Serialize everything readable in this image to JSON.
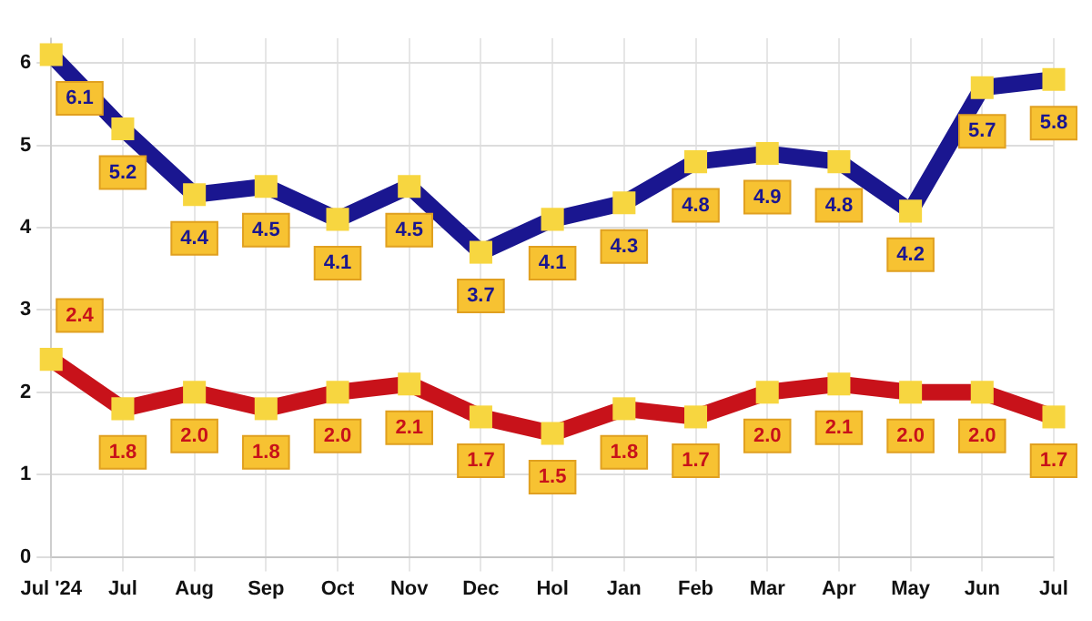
{
  "chart_data": {
    "type": "line",
    "categories": [
      "Jul '24",
      "Jul",
      "Aug",
      "Sep",
      "Oct",
      "Nov",
      "Dec",
      "Hol",
      "Jan",
      "Feb",
      "Mar",
      "Apr",
      "May",
      "Jun",
      "Jul"
    ],
    "series": [
      {
        "color": "#1a1690",
        "values": [
          6.1,
          5.2,
          4.4,
          4.5,
          4.1,
          4.5,
          3.7,
          4.1,
          4.3,
          4.8,
          4.9,
          4.8,
          4.2,
          5.7,
          5.8
        ],
        "value_labels": [
          "6.1",
          "5.2",
          "4.4",
          "4.5",
          "4.1",
          "4.5",
          "3.7",
          "4.1",
          "4.3",
          "4.8",
          "4.9",
          "4.8",
          "4.2",
          "5.7",
          "5.8"
        ]
      },
      {
        "color": "#c8121a",
        "values": [
          2.4,
          1.8,
          2.0,
          1.8,
          2.0,
          2.1,
          1.7,
          1.5,
          1.8,
          1.7,
          2.0,
          2.1,
          2.0,
          2.0,
          1.7
        ],
        "value_labels": [
          "2.4",
          "1.8",
          "2.0",
          "1.8",
          "2.0",
          "2.1",
          "1.7",
          "1.5",
          "1.8",
          "1.7",
          "2.0",
          "2.1",
          "2.0",
          "2.0",
          "1.7"
        ]
      }
    ],
    "ylim": [
      0,
      6.3
    ],
    "yticks": [
      0,
      1,
      2,
      3,
      4,
      5,
      6
    ],
    "grid": true,
    "marker": "square",
    "legend": false
  }
}
